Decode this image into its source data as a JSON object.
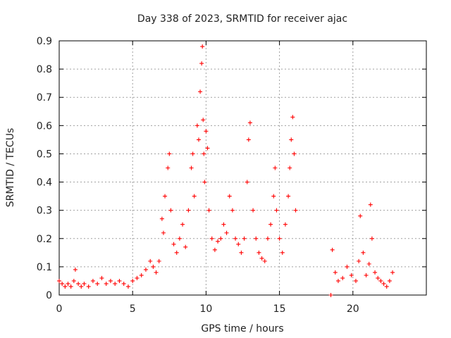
{
  "chart_data": {
    "type": "scatter",
    "title": "Day 338 of 2023, SRMTID for receiver ajac",
    "xlabel": "GPS time / hours",
    "ylabel": "SRMTID / TECUs",
    "xlim": [
      0,
      25
    ],
    "ylim": [
      0,
      0.9
    ],
    "xticks": [
      0,
      5,
      10,
      15,
      20
    ],
    "xtick_labels": [
      "0",
      "5",
      "10",
      "15",
      "20"
    ],
    "yticks": [
      0,
      0.1,
      0.2,
      0.3,
      0.4,
      0.5,
      0.6,
      0.7,
      0.8,
      0.9
    ],
    "ytick_labels": [
      "0",
      "0.1",
      "0.2",
      "0.3",
      "0.4",
      "0.5",
      "0.6",
      "0.7",
      "0.8",
      "0.9"
    ],
    "grid": true,
    "marker": "plus",
    "series": [
      {
        "name": "SRMTID",
        "color": "#ff0000",
        "x": [
          0.0,
          0.2,
          0.4,
          0.6,
          0.8,
          1.0,
          1.1,
          1.3,
          1.5,
          1.7,
          2.0,
          2.3,
          2.6,
          2.9,
          3.2,
          3.5,
          3.8,
          4.1,
          4.4,
          4.7,
          5.0,
          5.3,
          5.6,
          5.9,
          6.2,
          6.4,
          6.6,
          6.8,
          7.0,
          7.1,
          7.2,
          7.4,
          7.5,
          7.6,
          7.8,
          8.0,
          8.2,
          8.4,
          8.6,
          8.8,
          9.0,
          9.1,
          9.2,
          9.4,
          9.5,
          9.6,
          9.7,
          9.75,
          9.8,
          9.85,
          9.9,
          10.0,
          10.1,
          10.2,
          10.4,
          10.6,
          10.8,
          11.0,
          11.2,
          11.4,
          11.6,
          11.8,
          12.0,
          12.2,
          12.4,
          12.6,
          12.8,
          12.9,
          13.0,
          13.2,
          13.4,
          13.6,
          13.8,
          14.0,
          14.2,
          14.4,
          14.6,
          14.7,
          14.8,
          15.0,
          15.2,
          15.4,
          15.6,
          15.7,
          15.8,
          15.9,
          16.0,
          16.1,
          18.5,
          18.6,
          18.8,
          19.0,
          19.3,
          19.6,
          19.9,
          20.2,
          20.4,
          20.5,
          20.7,
          20.9,
          21.1,
          21.2,
          21.3,
          21.5,
          21.7,
          21.9,
          22.1,
          22.3,
          22.5,
          22.7
        ],
        "y": [
          0.05,
          0.04,
          0.03,
          0.04,
          0.03,
          0.05,
          0.09,
          0.04,
          0.03,
          0.04,
          0.03,
          0.05,
          0.04,
          0.06,
          0.04,
          0.05,
          0.04,
          0.05,
          0.04,
          0.03,
          0.05,
          0.06,
          0.07,
          0.09,
          0.12,
          0.1,
          0.08,
          0.12,
          0.27,
          0.22,
          0.35,
          0.45,
          0.5,
          0.3,
          0.18,
          0.15,
          0.2,
          0.25,
          0.17,
          0.3,
          0.45,
          0.5,
          0.35,
          0.6,
          0.55,
          0.72,
          0.82,
          0.88,
          0.62,
          0.5,
          0.4,
          0.58,
          0.52,
          0.3,
          0.2,
          0.16,
          0.19,
          0.2,
          0.25,
          0.22,
          0.35,
          0.3,
          0.2,
          0.18,
          0.15,
          0.2,
          0.4,
          0.55,
          0.61,
          0.3,
          0.2,
          0.15,
          0.13,
          0.12,
          0.2,
          0.25,
          0.35,
          0.45,
          0.3,
          0.2,
          0.15,
          0.25,
          0.35,
          0.45,
          0.55,
          0.63,
          0.5,
          0.3,
          0.0,
          0.16,
          0.08,
          0.05,
          0.06,
          0.1,
          0.07,
          0.05,
          0.12,
          0.28,
          0.15,
          0.07,
          0.11,
          0.32,
          0.2,
          0.08,
          0.06,
          0.05,
          0.04,
          0.03,
          0.05,
          0.08
        ]
      }
    ]
  }
}
